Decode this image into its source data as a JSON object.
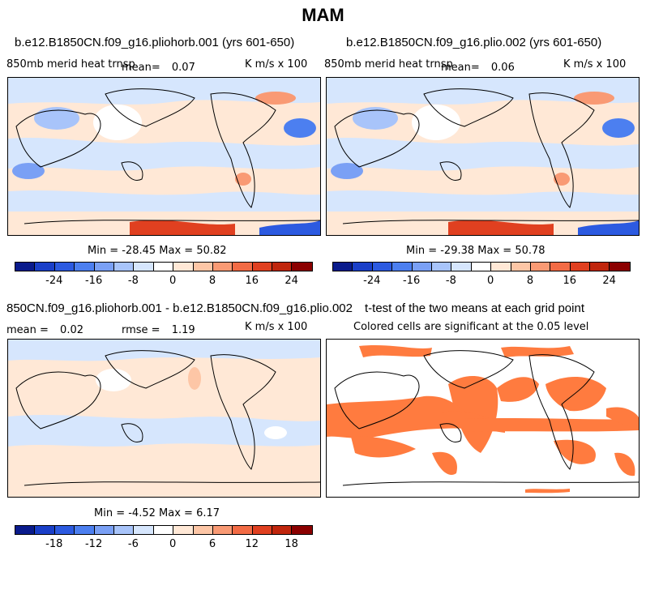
{
  "figure": {
    "title": "MAM"
  },
  "panels": {
    "top_left": {
      "title": "b.e12.B1850CN.f09_g16.pliohorb.001 (yrs 601-650)",
      "variable": "850mb merid heat trnsp",
      "mean_label": "mean=",
      "mean_value": "0.07",
      "units": "K m/s x 100",
      "min_label": "Min =",
      "min_value": "-28.45",
      "max_label": "Max =",
      "max_value": "50.82"
    },
    "top_right": {
      "title": "b.e12.B1850CN.f09_g16.plio.002 (yrs 601-650)",
      "variable": "850mb merid heat trnsp",
      "mean_label": "mean=",
      "mean_value": "0.06",
      "units": "K m/s x 100",
      "min_label": "Min =",
      "min_value": "-29.38",
      "max_label": "Max =",
      "max_value": "50.78"
    },
    "bottom_left": {
      "title": "850CN.f09_g16.pliohorb.001 - b.e12.B1850CN.f09_g16.plio.002",
      "mean_label": "mean =",
      "mean_value": "0.02",
      "rmse_label": "rmse =",
      "rmse_value": "1.19",
      "units": "K m/s x 100",
      "min_label": "Min =",
      "min_value": "-4.52",
      "max_label": "Max =",
      "max_value": "6.17"
    },
    "bottom_right": {
      "title": "t-test of the two means at each grid point",
      "subtitle": "Colored cells are significant at the 0.05 level",
      "significant_color": "#ff7b3f"
    }
  },
  "colorbars": {
    "colors": [
      "#0a1b8c",
      "#1a3fc8",
      "#2c5ae0",
      "#4c7ff0",
      "#7aa0f5",
      "#a8c4fa",
      "#d6e6fd",
      "#ffffff",
      "#ffe8d6",
      "#fdc6a6",
      "#f99a74",
      "#f26b45",
      "#e04020",
      "#c0260d",
      "#8b0000"
    ],
    "top": {
      "ticks": [
        "-24",
        "-16",
        "-8",
        "0",
        "8",
        "16",
        "24"
      ]
    },
    "bottom": {
      "ticks": [
        "-18",
        "-12",
        "-6",
        "0",
        "6",
        "12",
        "18"
      ]
    }
  }
}
